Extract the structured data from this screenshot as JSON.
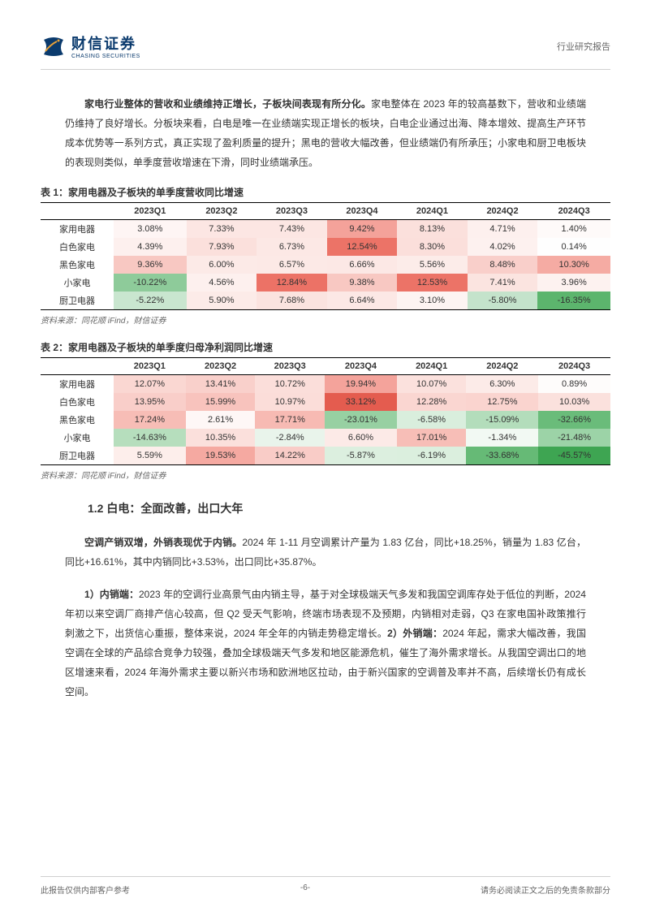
{
  "header": {
    "logo_cn": "财信证券",
    "logo_en": "CHASING SECURITIES",
    "right_text": "行业研究报告"
  },
  "intro_paragraph": {
    "bold": "家电行业整体的营收和业绩维持正增长，子板块间表现有所分化。",
    "rest": "家电整体在 2023 年的较高基数下，营收和业绩端仍维持了良好增长。分板块来看，白电是唯一在业绩端实现正增长的板块，白电企业通过出海、降本增效、提高生产环节成本优势等一系列方式，真正实现了盈利质量的提升；黑电的营收大幅改善，但业绩端仍有所承压；小家电和厨卫电板块的表现则类似，单季度营收增速在下滑，同时业绩端承压。"
  },
  "table1": {
    "title": "表 1：家用电器及子板块的单季度营收同比增速",
    "source": "资料来源：同花顺 iFind，财信证券",
    "columns": [
      "",
      "2023Q1",
      "2023Q2",
      "2023Q3",
      "2023Q4",
      "2024Q1",
      "2024Q2",
      "2024Q3"
    ],
    "rows": [
      {
        "label": "家用电器",
        "cells": [
          {
            "v": "3.08%",
            "bg": "#fef5f4"
          },
          {
            "v": "7.33%",
            "bg": "#fce6e3"
          },
          {
            "v": "7.43%",
            "bg": "#fce6e3"
          },
          {
            "v": "9.42%",
            "bg": "#f4a29a"
          },
          {
            "v": "8.13%",
            "bg": "#fbe0dc"
          },
          {
            "v": "4.71%",
            "bg": "#fdf0ee"
          },
          {
            "v": "1.40%",
            "bg": "#fefaf9"
          }
        ]
      },
      {
        "label": "白色家电",
        "cells": [
          {
            "v": "4.39%",
            "bg": "#fdf0ee"
          },
          {
            "v": "7.93%",
            "bg": "#fbe0dc"
          },
          {
            "v": "6.73%",
            "bg": "#fce8e5"
          },
          {
            "v": "12.54%",
            "bg": "#ec7367"
          },
          {
            "v": "8.30%",
            "bg": "#fbdfdb"
          },
          {
            "v": "4.02%",
            "bg": "#fdf1ef"
          },
          {
            "v": "0.14%",
            "bg": "#fefefe"
          }
        ]
      },
      {
        "label": "黑色家电",
        "cells": [
          {
            "v": "9.36%",
            "bg": "#f8c8c2"
          },
          {
            "v": "6.00%",
            "bg": "#fceae7"
          },
          {
            "v": "6.57%",
            "bg": "#fce9e6"
          },
          {
            "v": "6.66%",
            "bg": "#fce8e5"
          },
          {
            "v": "5.56%",
            "bg": "#fcece9"
          },
          {
            "v": "8.48%",
            "bg": "#f9cfca"
          },
          {
            "v": "10.30%",
            "bg": "#f5aba3"
          }
        ]
      },
      {
        "label": "小家电",
        "cells": [
          {
            "v": "-10.22%",
            "bg": "#8ecb9a"
          },
          {
            "v": "4.56%",
            "bg": "#fdf0ee"
          },
          {
            "v": "12.84%",
            "bg": "#ec7266"
          },
          {
            "v": "9.38%",
            "bg": "#f8c8c2"
          },
          {
            "v": "12.53%",
            "bg": "#ec7367"
          },
          {
            "v": "7.41%",
            "bg": "#fbe4e0"
          },
          {
            "v": "3.96%",
            "bg": "#fdf2f0"
          }
        ]
      },
      {
        "label": "厨卫电器",
        "cells": [
          {
            "v": "-5.22%",
            "bg": "#c9e6cf"
          },
          {
            "v": "5.90%",
            "bg": "#fcebe8"
          },
          {
            "v": "7.68%",
            "bg": "#fbe3df"
          },
          {
            "v": "6.64%",
            "bg": "#fce8e5"
          },
          {
            "v": "3.10%",
            "bg": "#fdf4f2"
          },
          {
            "v": "-5.80%",
            "bg": "#c4e3cb"
          },
          {
            "v": "-16.35%",
            "bg": "#5cb56d"
          }
        ]
      }
    ]
  },
  "table2": {
    "title": "表 2：家用电器及子板块的单季度归母净利润同比增速",
    "source": "资料来源：同花顺 iFind，财信证券",
    "columns": [
      "",
      "2023Q1",
      "2023Q2",
      "2023Q3",
      "2023Q4",
      "2024Q1",
      "2024Q2",
      "2024Q3"
    ],
    "rows": [
      {
        "label": "家用电器",
        "cells": [
          {
            "v": "12.07%",
            "bg": "#fad7d2"
          },
          {
            "v": "13.41%",
            "bg": "#f9d0cb"
          },
          {
            "v": "10.72%",
            "bg": "#fbdeda"
          },
          {
            "v": "19.94%",
            "bg": "#f4a39b"
          },
          {
            "v": "10.07%",
            "bg": "#fbe1dd"
          },
          {
            "v": "6.30%",
            "bg": "#fcebe8"
          },
          {
            "v": "0.89%",
            "bg": "#fefcfb"
          }
        ]
      },
      {
        "label": "白色家电",
        "cells": [
          {
            "v": "13.95%",
            "bg": "#f9cec9"
          },
          {
            "v": "15.99%",
            "bg": "#f8c3bd"
          },
          {
            "v": "10.97%",
            "bg": "#fbddd9"
          },
          {
            "v": "33.12%",
            "bg": "#e45c4f"
          },
          {
            "v": "12.28%",
            "bg": "#fad6d1"
          },
          {
            "v": "12.75%",
            "bg": "#fad4cf"
          },
          {
            "v": "10.03%",
            "bg": "#fbe1dd"
          }
        ]
      },
      {
        "label": "黑色家电",
        "cells": [
          {
            "v": "17.24%",
            "bg": "#f7bdb6"
          },
          {
            "v": "2.61%",
            "bg": "#fef7f6"
          },
          {
            "v": "17.71%",
            "bg": "#f7bab3"
          },
          {
            "v": "-23.01%",
            "bg": "#97d0a2"
          },
          {
            "v": "-6.58%",
            "bg": "#d9eedd"
          },
          {
            "v": "-15.09%",
            "bg": "#b3ddbb"
          },
          {
            "v": "-32.66%",
            "bg": "#6abc7a"
          }
        ]
      },
      {
        "label": "小家电",
        "cells": [
          {
            "v": "-14.63%",
            "bg": "#b6debd"
          },
          {
            "v": "10.35%",
            "bg": "#fbe0dc"
          },
          {
            "v": "-2.84%",
            "bg": "#e9f4eb"
          },
          {
            "v": "6.60%",
            "bg": "#fceae7"
          },
          {
            "v": "17.01%",
            "bg": "#f7beb7"
          },
          {
            "v": "-1.34%",
            "bg": "#f2f9f3"
          },
          {
            "v": "-21.48%",
            "bg": "#9cd3a7"
          }
        ]
      },
      {
        "label": "厨卫电器",
        "cells": [
          {
            "v": "5.59%",
            "bg": "#fdeeeb"
          },
          {
            "v": "19.53%",
            "bg": "#f5a9a1"
          },
          {
            "v": "14.22%",
            "bg": "#f9ccc7"
          },
          {
            "v": "-5.87%",
            "bg": "#dcefdf"
          },
          {
            "v": "-6.19%",
            "bg": "#dbefde"
          },
          {
            "v": "-33.68%",
            "bg": "#66ba76"
          },
          {
            "v": "-45.57%",
            "bg": "#3ea552"
          }
        ]
      }
    ]
  },
  "section_heading": "1.2 白电：全面改善，出口大年",
  "para2": {
    "bold": "空调产销双增，外销表现优于内销。",
    "rest": "2024 年 1-11 月空调累计产量为 1.83 亿台，同比+18.25%，销量为 1.83 亿台，同比+16.61%，其中内销同比+3.53%，出口同比+35.87%。"
  },
  "para3": {
    "bold1": "1）内销端：",
    "text1": "2023 年的空调行业高景气由内销主导，基于对全球极端天气多发和我国空调库存处于低位的判断，2024 年初以来空调厂商排产信心较高，但 Q2 受天气影响，终端市场表现不及预期，内销相对走弱，Q3 在家电国补政策推行刺激之下，出货信心重振，整体来说，2024 年全年的内销走势稳定增长。",
    "bold2": "2）外销端：",
    "text2": "2024 年起，需求大幅改善，我国空调在全球的产品综合竞争力较强，叠加全球极端天气多发和地区能源危机，催生了海外需求增长。从我国空调出口的地区增速来看，2024 年海外需求主要以新兴市场和欧洲地区拉动，由于新兴国家的空调普及率并不高，后续增长仍有成长空间。"
  },
  "footer": {
    "left": "此报告仅供内部客户参考",
    "center": "-6-",
    "right": "请务必阅读正文之后的免责条款部分"
  },
  "colors": {
    "logo_blue": "#0a3a6d",
    "logo_orange": "#e8a139",
    "text": "#333333",
    "border": "#d0d0d0"
  }
}
